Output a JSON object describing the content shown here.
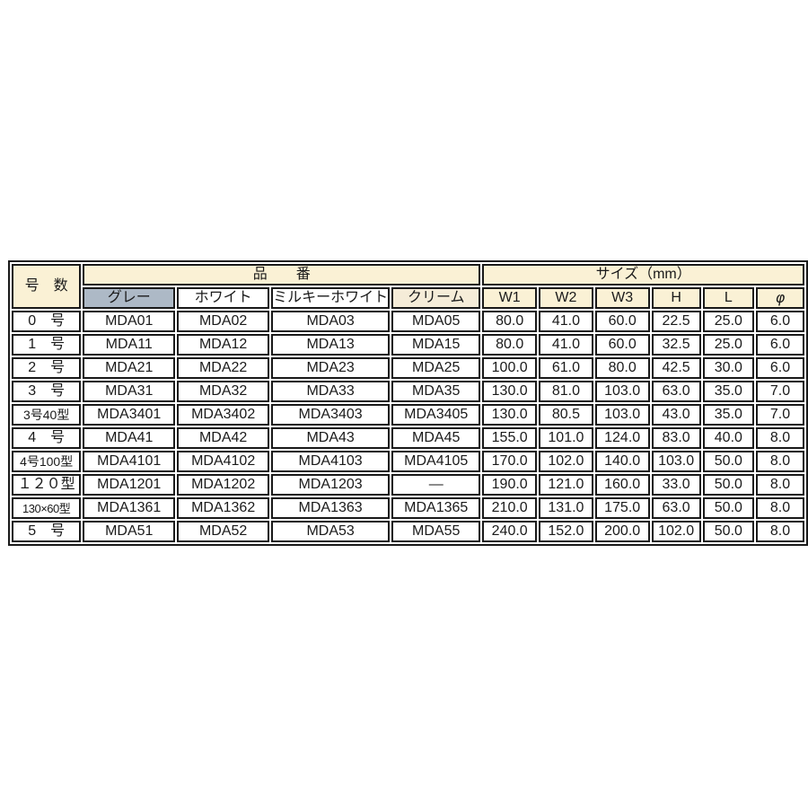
{
  "colors": {
    "grid": "#1a1a1a",
    "text": "#1a1a1a",
    "header_bg": "#faf1d5",
    "gray_bg": "#adb9c6",
    "white_bg": "#ffffff",
    "milky_bg": "#ececе6",
    "cream_bg": "#f5ecd8"
  },
  "table": {
    "header": {
      "model_col": "号　数",
      "part_number_group": "品　　番",
      "size_group": "サイズ（mm）",
      "color_cols": [
        {
          "label": "グレー"
        },
        {
          "label": "ホワイト"
        },
        {
          "label": "ミルキーホワイト"
        },
        {
          "label": "クリーム"
        }
      ],
      "size_cols": [
        "W1",
        "W2",
        "W3",
        "H",
        "L",
        "φ"
      ]
    },
    "rows": [
      {
        "label": "0　号",
        "codes": [
          "MDA01",
          "MDA02",
          "MDA03",
          "MDA05"
        ],
        "sizes": [
          "80.0",
          "41.0",
          "60.0",
          "22.5",
          "25.0",
          "6.0"
        ]
      },
      {
        "label": "1　号",
        "codes": [
          "MDA11",
          "MDA12",
          "MDA13",
          "MDA15"
        ],
        "sizes": [
          "80.0",
          "41.0",
          "60.0",
          "32.5",
          "25.0",
          "6.0"
        ]
      },
      {
        "label": "2　号",
        "codes": [
          "MDA21",
          "MDA22",
          "MDA23",
          "MDA25"
        ],
        "sizes": [
          "100.0",
          "61.0",
          "80.0",
          "42.5",
          "30.0",
          "6.0"
        ]
      },
      {
        "label": "3　号",
        "codes": [
          "MDA31",
          "MDA32",
          "MDA33",
          "MDA35"
        ],
        "sizes": [
          "130.0",
          "81.0",
          "103.0",
          "63.0",
          "35.0",
          "7.0"
        ]
      },
      {
        "label": "3号40型",
        "codes": [
          "MDA3401",
          "MDA3402",
          "MDA3403",
          "MDA3405"
        ],
        "sizes": [
          "130.0",
          "80.5",
          "103.0",
          "43.0",
          "35.0",
          "7.0"
        ]
      },
      {
        "label": "4　号",
        "codes": [
          "MDA41",
          "MDA42",
          "MDA43",
          "MDA45"
        ],
        "sizes": [
          "155.0",
          "101.0",
          "124.0",
          "83.0",
          "40.0",
          "8.0"
        ]
      },
      {
        "label": "4号100型",
        "codes": [
          "MDA4101",
          "MDA4102",
          "MDA4103",
          "MDA4105"
        ],
        "sizes": [
          "170.0",
          "102.0",
          "140.0",
          "103.0",
          "50.0",
          "8.0"
        ]
      },
      {
        "label": "１２０型",
        "codes": [
          "MDA1201",
          "MDA1202",
          "MDA1203",
          "—"
        ],
        "sizes": [
          "190.0",
          "121.0",
          "160.0",
          "33.0",
          "50.0",
          "8.0"
        ]
      },
      {
        "label": "130×60型",
        "codes": [
          "MDA1361",
          "MDA1362",
          "MDA1363",
          "MDA1365"
        ],
        "sizes": [
          "210.0",
          "131.0",
          "175.0",
          "63.0",
          "50.0",
          "8.0"
        ]
      },
      {
        "label": "5　号",
        "codes": [
          "MDA51",
          "MDA52",
          "MDA53",
          "MDA55"
        ],
        "sizes": [
          "240.0",
          "152.0",
          "200.0",
          "102.0",
          "50.0",
          "8.0"
        ]
      }
    ]
  }
}
